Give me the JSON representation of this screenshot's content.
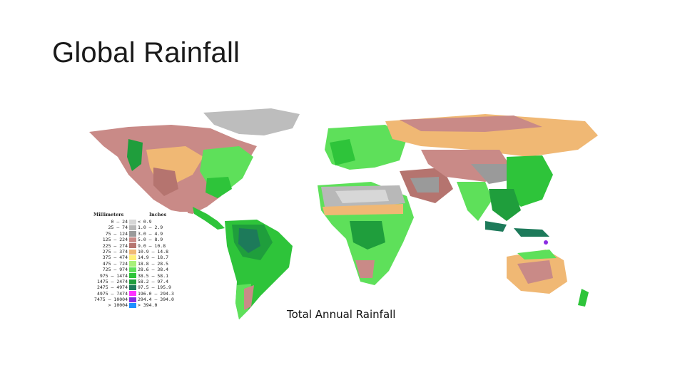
{
  "slide": {
    "title": "Global Rainfall"
  },
  "map": {
    "caption": "Total Annual Rainfall",
    "ocean_color": "#ffffff"
  },
  "legend": {
    "mm_header": "Millimeters",
    "in_header": "Inches",
    "rows": [
      {
        "mm": "0 –    24",
        "in": "<   0.9",
        "color": "#d7d7d7"
      },
      {
        "mm": "25 –    74",
        "in": "1.0 –   2.9",
        "color": "#b8b8b8"
      },
      {
        "mm": "75 –   124",
        "in": "3.0 –   4.9",
        "color": "#9a9a9a"
      },
      {
        "mm": "125 –   224",
        "in": "5.0 –   8.9",
        "color": "#c98a87"
      },
      {
        "mm": "225 –   274",
        "in": "9.0 –  10.8",
        "color": "#b5746f"
      },
      {
        "mm": "275 –   374",
        "in": "10.9 –  14.8",
        "color": "#f0b874"
      },
      {
        "mm": "375 –   474",
        "in": "14.9 –  18.7",
        "color": "#fff07a"
      },
      {
        "mm": "475 –   724",
        "in": "18.8 –  28.5",
        "color": "#a8f07a"
      },
      {
        "mm": "725 –   974",
        "in": "28.6 –  38.4",
        "color": "#5ee05a"
      },
      {
        "mm": "975 –  1474",
        "in": "38.5 –  58.1",
        "color": "#2ec43a"
      },
      {
        "mm": "1475 –  2474",
        "in": "58.2 –  97.4",
        "color": "#1f9e3c"
      },
      {
        "mm": "2475 –  4974",
        "in": "97.5 – 195.9",
        "color": "#1d7a5a"
      },
      {
        "mm": "4975 –  7474",
        "in": "196.0 – 294.3",
        "color": "#ff33ff"
      },
      {
        "mm": "7475 – 10004",
        "in": "294.4 – 394.0",
        "color": "#8a2be2"
      },
      {
        "mm": "> 10004",
        "in": "> 394.0",
        "color": "#1e90ff"
      }
    ]
  }
}
